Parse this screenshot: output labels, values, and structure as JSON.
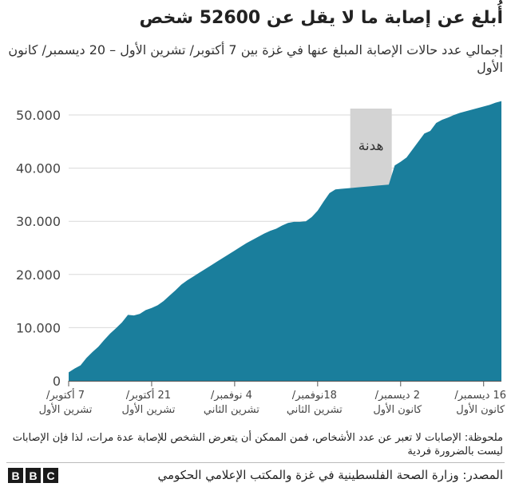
{
  "title": "أُبلغ عن إصابة ما لا يقل عن 52600 شخص",
  "subtitle": "إجمالي عدد حالات الإصابة المبلغ عنها في غزة بين 7 أكتوبر/ تشرين الأول – 20 ديسمبر/ كانون الأول",
  "note": "ملحوظة: الإصابات لا تعبر عن عدد الأشخاص، فمن الممكن أن يتعرض الشخص للإصابة عدة مرات، لذا فإن الإصابات ليست بالضرورة فردية",
  "source": "المصدر: وزارة الصحة الفلسطينية في غزة والمكتب الإعلامي الحكومي",
  "logo": [
    "B",
    "B",
    "C"
  ],
  "colors": {
    "area": "#1a7e9c",
    "truce": "#d3d3d3",
    "grid": "#d9d9d9",
    "axis": "#555555"
  },
  "chart_data": {
    "type": "area",
    "xlabel": "",
    "ylabel": "",
    "ylim": [
      0,
      53000
    ],
    "grid": true,
    "y_ticks": [
      {
        "value": 0,
        "label": "0"
      },
      {
        "value": 10000,
        "label": "10.000"
      },
      {
        "value": 20000,
        "label": "20.000"
      },
      {
        "value": 30000,
        "label": "30.000"
      },
      {
        "value": 40000,
        "label": "40.000"
      },
      {
        "value": 50000,
        "label": "50.000"
      }
    ],
    "x_ticks": [
      {
        "day": 7,
        "line1": "7 أكتوبر/",
        "line2": "تشرين الأول"
      },
      {
        "day": 21,
        "line1": "21 أكتوبر/",
        "line2": "تشرين الأول"
      },
      {
        "day": 35,
        "line1": "4 نوفمبر/",
        "line2": "تشرين الثاني"
      },
      {
        "day": 49,
        "line1": "18نوفمبر/",
        "line2": "تشرين الثاني"
      },
      {
        "day": 63,
        "line1": "2 ديسمبر/",
        "line2": "كانون الأول"
      },
      {
        "day": 77,
        "line1": "16 ديسمبر/",
        "line2": "كانون الأول"
      }
    ],
    "truce": {
      "start": 54.5,
      "end": 61.5,
      "label": "هدنة"
    },
    "points": [
      [
        7,
        1600
      ],
      [
        8,
        2300
      ],
      [
        9,
        2900
      ],
      [
        10,
        4300
      ],
      [
        11,
        5400
      ],
      [
        12,
        6400
      ],
      [
        13,
        7700
      ],
      [
        14,
        8900
      ],
      [
        15,
        9900
      ],
      [
        16,
        11000
      ],
      [
        17,
        12400
      ],
      [
        18,
        12300
      ],
      [
        19,
        12600
      ],
      [
        20,
        13300
      ],
      [
        21,
        13700
      ],
      [
        22,
        14200
      ],
      [
        23,
        15000
      ],
      [
        24,
        16000
      ],
      [
        25,
        17000
      ],
      [
        26,
        18100
      ],
      [
        27,
        18900
      ],
      [
        28,
        19600
      ],
      [
        29,
        20300
      ],
      [
        30,
        21000
      ],
      [
        31,
        21700
      ],
      [
        32,
        22400
      ],
      [
        33,
        23100
      ],
      [
        34,
        23800
      ],
      [
        35,
        24500
      ],
      [
        36,
        25200
      ],
      [
        37,
        25900
      ],
      [
        38,
        26500
      ],
      [
        39,
        27100
      ],
      [
        40,
        27700
      ],
      [
        41,
        28200
      ],
      [
        42,
        28600
      ],
      [
        43,
        29200
      ],
      [
        44,
        29700
      ],
      [
        45,
        29900
      ],
      [
        46,
        29900
      ],
      [
        47,
        30000
      ],
      [
        48,
        30800
      ],
      [
        49,
        32000
      ],
      [
        50,
        33700
      ],
      [
        51,
        35300
      ],
      [
        52,
        36000
      ],
      [
        53,
        36100
      ],
      [
        54,
        36200
      ],
      [
        55,
        36300
      ],
      [
        56,
        36400
      ],
      [
        57,
        36500
      ],
      [
        58,
        36600
      ],
      [
        59,
        36700
      ],
      [
        60,
        36800
      ],
      [
        61,
        36900
      ],
      [
        62,
        40500
      ],
      [
        63,
        41200
      ],
      [
        64,
        42000
      ],
      [
        65,
        43500
      ],
      [
        66,
        45000
      ],
      [
        67,
        46500
      ],
      [
        68,
        47000
      ],
      [
        69,
        48500
      ],
      [
        70,
        49100
      ],
      [
        71,
        49500
      ],
      [
        72,
        50000
      ],
      [
        73,
        50400
      ],
      [
        74,
        50700
      ],
      [
        75,
        51000
      ],
      [
        76,
        51300
      ],
      [
        77,
        51600
      ],
      [
        78,
        51900
      ],
      [
        79,
        52300
      ],
      [
        80,
        52600
      ]
    ]
  }
}
